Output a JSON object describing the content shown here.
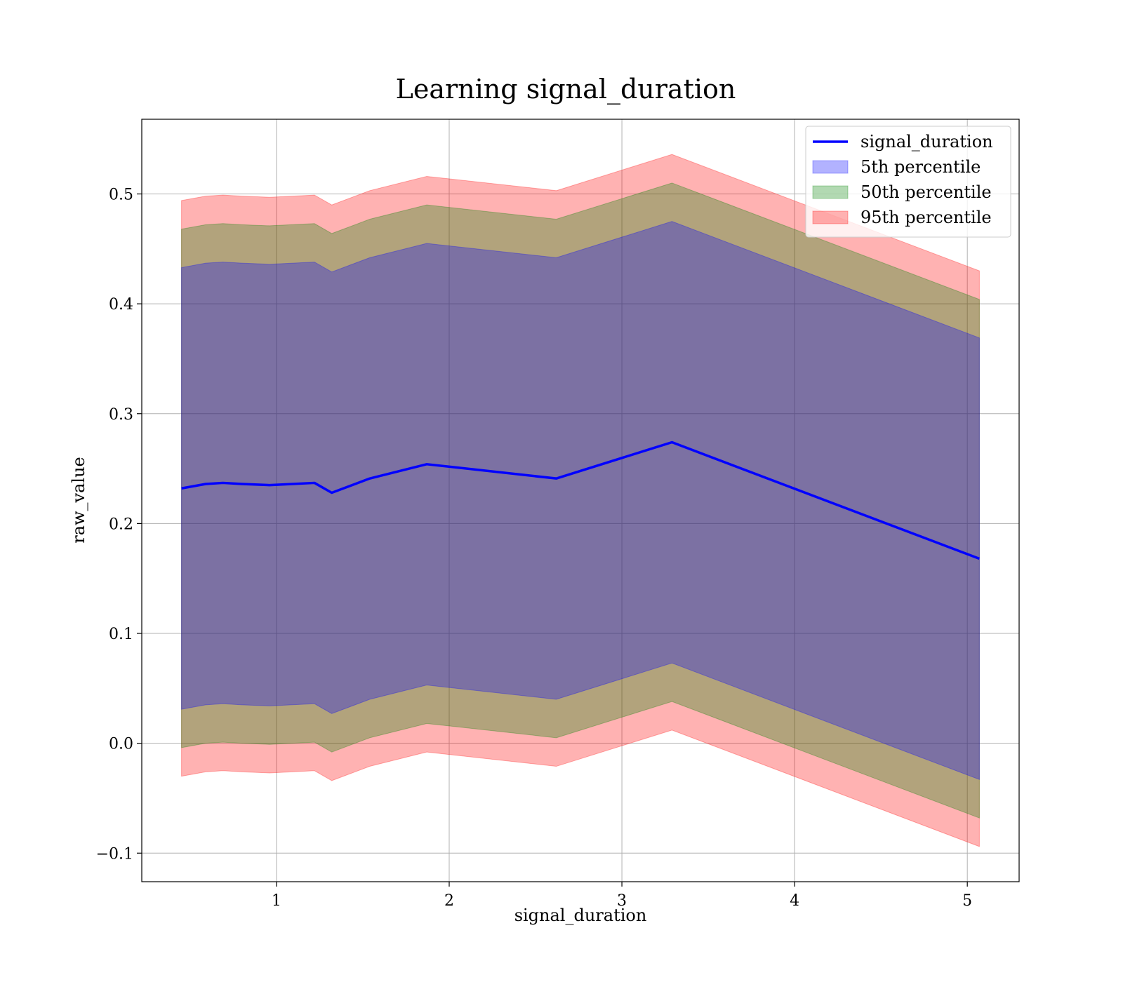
{
  "chart_data": {
    "type": "line",
    "title": "Learning signal_duration",
    "xlabel": "signal_duration",
    "ylabel": "raw_value",
    "xlim": [
      0.22,
      5.3
    ],
    "ylim": [
      -0.126,
      0.568
    ],
    "x_ticks": [
      1,
      2,
      3,
      4,
      5
    ],
    "x_tick_labels": [
      "1",
      "2",
      "3",
      "4",
      "5"
    ],
    "y_ticks": [
      -0.1,
      0.0,
      0.1,
      0.2,
      0.3,
      0.4,
      0.5
    ],
    "y_tick_labels": [
      "−0.1",
      "0.0",
      "0.1",
      "0.2",
      "0.3",
      "0.4",
      "0.5"
    ],
    "grid": true,
    "legend_position": "top-right",
    "x": [
      0.45,
      0.59,
      0.69,
      0.8,
      0.96,
      1.22,
      1.32,
      1.54,
      1.87,
      2.62,
      3.29,
      5.07
    ],
    "series": [
      {
        "name": "signal_duration",
        "kind": "line",
        "color": "#0000ff",
        "values": [
          0.232,
          0.236,
          0.237,
          0.236,
          0.235,
          0.237,
          0.228,
          0.241,
          0.254,
          0.241,
          0.274,
          0.168
        ]
      },
      {
        "name": "5th percentile",
        "kind": "band",
        "color": "#0000ff",
        "lower": [
          0.031,
          0.035,
          0.036,
          0.035,
          0.034,
          0.036,
          0.027,
          0.04,
          0.053,
          0.04,
          0.073,
          -0.033
        ],
        "upper": [
          0.433,
          0.437,
          0.438,
          0.437,
          0.436,
          0.438,
          0.429,
          0.442,
          0.455,
          0.442,
          0.475,
          0.369
        ]
      },
      {
        "name": "50th percentile",
        "kind": "band",
        "color": "#008000",
        "lower": [
          -0.004,
          0.0,
          0.001,
          0.0,
          -0.001,
          0.001,
          -0.008,
          0.005,
          0.018,
          0.005,
          0.038,
          -0.068
        ],
        "upper": [
          0.468,
          0.472,
          0.473,
          0.472,
          0.471,
          0.473,
          0.464,
          0.477,
          0.49,
          0.477,
          0.51,
          0.404
        ]
      },
      {
        "name": "95th percentile",
        "kind": "band",
        "color": "#ff0000",
        "lower": [
          -0.03,
          -0.026,
          -0.025,
          -0.026,
          -0.027,
          -0.025,
          -0.034,
          -0.021,
          -0.008,
          -0.021,
          0.012,
          -0.094
        ],
        "upper": [
          0.494,
          0.498,
          0.499,
          0.498,
          0.497,
          0.499,
          0.49,
          0.503,
          0.516,
          0.503,
          0.536,
          0.43
        ]
      }
    ]
  }
}
